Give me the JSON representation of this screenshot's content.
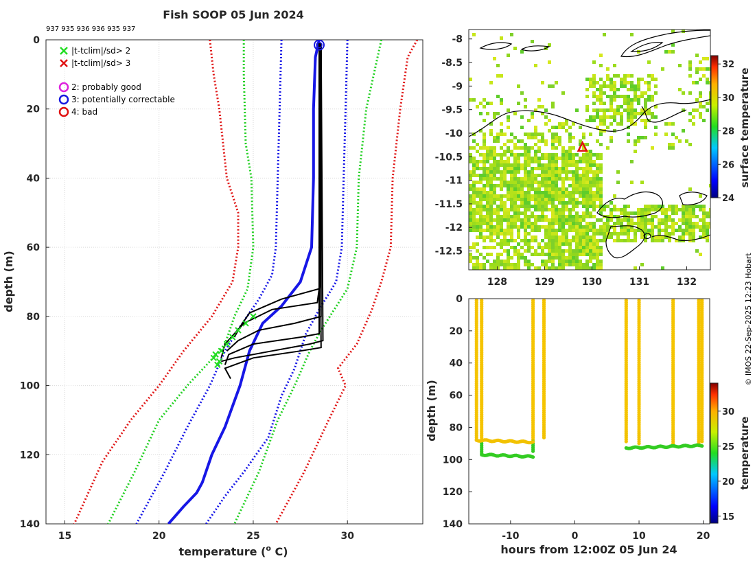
{
  "chart_data": [
    {
      "type": "line",
      "panel": "profile",
      "title": "Fish SOOP 05 Jun 2024",
      "header_ids": "937 935 936 936 935 937",
      "xlabel": "temperature (° C)",
      "xlabel_prefix": "temperature (",
      "xlabel_sup": "o",
      "xlabel_suffix": " C)",
      "ylabel": "depth (m)",
      "xlim": [
        14,
        34
      ],
      "ylim": [
        140,
        0
      ],
      "xticks": [
        15,
        20,
        25,
        30
      ],
      "yticks": [
        0,
        20,
        40,
        60,
        80,
        100,
        120,
        140
      ],
      "legend": [
        {
          "marker": "x",
          "color": "#22dd22",
          "label": "|t-tclim|/sd> 2"
        },
        {
          "marker": "x",
          "color": "#e01010",
          "label": "|t-tclim|/sd> 3"
        },
        {
          "marker": "o",
          "color": "#dd22dd",
          "label": "2: probably good"
        },
        {
          "marker": "o",
          "color": "#1818e0",
          "label": "3: potentially correctable"
        },
        {
          "marker": "o",
          "color": "#e01010",
          "label": "4: bad"
        }
      ],
      "climatology": [
        {
          "name": "mean",
          "color": "#1717e6",
          "style": "solid",
          "points": [
            [
              28.5,
              0
            ],
            [
              28.3,
              5
            ],
            [
              28.2,
              20
            ],
            [
              28.2,
              40
            ],
            [
              28.1,
              60
            ],
            [
              27.5,
              70
            ],
            [
              26.5,
              77
            ],
            [
              25.5,
              82
            ],
            [
              24.8,
              90
            ],
            [
              24.3,
              100
            ],
            [
              23.5,
              112
            ],
            [
              22.8,
              120
            ],
            [
              22.3,
              128
            ],
            [
              22.0,
              131
            ],
            [
              21.3,
              135
            ],
            [
              20.5,
              140
            ]
          ]
        },
        {
          "name": "mean-1sd",
          "color": "#1717e6",
          "style": "dotted",
          "points": [
            [
              26.5,
              0
            ],
            [
              26.4,
              20
            ],
            [
              26.3,
              40
            ],
            [
              26.2,
              60
            ],
            [
              26.0,
              68
            ],
            [
              25.3,
              75
            ],
            [
              24.3,
              83
            ],
            [
              23.5,
              90
            ],
            [
              22.7,
              100
            ],
            [
              21.5,
              112
            ],
            [
              20.3,
              125
            ],
            [
              19.3,
              135
            ],
            [
              18.8,
              140
            ]
          ]
        },
        {
          "name": "mean+1sd",
          "color": "#1717e6",
          "style": "dotted",
          "points": [
            [
              30.0,
              0
            ],
            [
              29.9,
              20
            ],
            [
              29.8,
              40
            ],
            [
              29.7,
              60
            ],
            [
              29.4,
              70
            ],
            [
              28.5,
              78
            ],
            [
              27.8,
              85
            ],
            [
              27.2,
              95
            ],
            [
              26.5,
              103
            ],
            [
              25.8,
              115
            ],
            [
              24.5,
              125
            ],
            [
              23.5,
              132
            ],
            [
              22.5,
              140
            ]
          ]
        },
        {
          "name": "mean-2sd",
          "color": "#22d022",
          "style": "dotted",
          "points": [
            [
              24.5,
              0
            ],
            [
              24.5,
              10
            ],
            [
              24.6,
              30
            ],
            [
              24.9,
              40
            ],
            [
              25.0,
              60
            ],
            [
              24.7,
              72
            ],
            [
              24.0,
              80
            ],
            [
              23.5,
              88
            ],
            [
              22.7,
              93
            ],
            [
              21.5,
              100
            ],
            [
              20.0,
              110
            ],
            [
              18.7,
              125
            ],
            [
              17.3,
              140
            ]
          ]
        },
        {
          "name": "mean+2sd",
          "color": "#22d022",
          "style": "dotted",
          "points": [
            [
              31.8,
              0
            ],
            [
              31.4,
              10
            ],
            [
              31.0,
              20
            ],
            [
              30.6,
              40
            ],
            [
              30.5,
              60
            ],
            [
              30.0,
              72
            ],
            [
              29.3,
              78
            ],
            [
              28.6,
              84
            ],
            [
              28.0,
              90
            ],
            [
              27.2,
              100
            ],
            [
              26.3,
              110
            ],
            [
              25.3,
              125
            ],
            [
              24.0,
              140
            ]
          ]
        },
        {
          "name": "mean-3sd",
          "color": "#e01818",
          "style": "dotted",
          "points": [
            [
              22.7,
              0
            ],
            [
              22.9,
              10
            ],
            [
              23.2,
              20
            ],
            [
              23.6,
              40
            ],
            [
              24.2,
              50
            ],
            [
              24.2,
              60
            ],
            [
              23.9,
              70
            ],
            [
              22.8,
              80
            ],
            [
              21.3,
              90
            ],
            [
              20.0,
              100
            ],
            [
              18.5,
              110
            ],
            [
              17.0,
              122
            ],
            [
              15.5,
              140
            ]
          ]
        },
        {
          "name": "mean+3sd",
          "color": "#e01818",
          "style": "dotted",
          "points": [
            [
              33.7,
              0
            ],
            [
              33.2,
              5
            ],
            [
              32.8,
              20
            ],
            [
              32.4,
              40
            ],
            [
              32.3,
              60
            ],
            [
              31.8,
              70
            ],
            [
              31.3,
              78
            ],
            [
              30.5,
              88
            ],
            [
              29.5,
              95
            ],
            [
              29.9,
              100
            ],
            [
              29.0,
              110
            ],
            [
              27.7,
              125
            ],
            [
              26.2,
              140
            ]
          ]
        }
      ],
      "profiles": [
        [
          [
            28.55,
            1
          ],
          [
            28.6,
            60
          ],
          [
            28.5,
            72
          ],
          [
            26.5,
            75
          ],
          [
            24.8,
            79
          ],
          [
            24.3,
            83
          ],
          [
            24.0,
            86
          ]
        ],
        [
          [
            28.5,
            1
          ],
          [
            28.55,
            70
          ],
          [
            28.4,
            76
          ],
          [
            26.0,
            78
          ],
          [
            24.5,
            82
          ],
          [
            23.5,
            88
          ],
          [
            23.3,
            92
          ]
        ],
        [
          [
            28.6,
            1
          ],
          [
            28.6,
            80
          ],
          [
            27.2,
            82
          ],
          [
            25.3,
            84
          ],
          [
            24.2,
            87
          ],
          [
            23.6,
            90
          ]
        ],
        [
          [
            28.5,
            1
          ],
          [
            28.5,
            85
          ],
          [
            27.5,
            86
          ],
          [
            25.0,
            88
          ],
          [
            23.7,
            91
          ],
          [
            23.5,
            94
          ]
        ],
        [
          [
            28.6,
            1
          ],
          [
            28.7,
            87
          ],
          [
            28.0,
            88
          ],
          [
            26.0,
            90
          ],
          [
            24.0,
            92
          ],
          [
            23.3,
            93
          ]
        ],
        [
          [
            28.5,
            1
          ],
          [
            28.6,
            89
          ],
          [
            27.5,
            90
          ],
          [
            25.0,
            92
          ],
          [
            23.5,
            95
          ],
          [
            23.8,
            98
          ]
        ]
      ],
      "flags": [
        {
          "x": 28.5,
          "y": 1.5,
          "color": "#1818e0"
        }
      ],
      "outlier_markers": [
        [
          23.0,
          91
        ],
        [
          23.2,
          93
        ],
        [
          22.9,
          92
        ],
        [
          23.3,
          90
        ],
        [
          23.6,
          88
        ],
        [
          23.9,
          86
        ],
        [
          24.2,
          84
        ],
        [
          24.6,
          82
        ],
        [
          25.0,
          80
        ],
        [
          23.1,
          94
        ]
      ]
    },
    {
      "type": "heatmap",
      "panel": "map",
      "xticks": [
        128,
        129,
        130,
        131,
        132
      ],
      "yticks": [
        -8,
        -8.5,
        -9,
        -9.5,
        -10,
        -10.5,
        -11,
        -11.5,
        -12,
        -12.5
      ],
      "xlim": [
        127.4,
        132.5
      ],
      "ylim": [
        -12.9,
        -7.8
      ],
      "ship_position": {
        "lon": 129.8,
        "lat": -10.3,
        "marker": "triangle",
        "color": "#e01010"
      },
      "colorbar": {
        "label": "surface temperature",
        "ticks": [
          24,
          26,
          28,
          30,
          32
        ],
        "range": [
          24,
          32.5
        ]
      }
    },
    {
      "type": "scatter",
      "panel": "timeseries",
      "xlabel": "hours from 12:00Z 05 Jun 24",
      "ylabel": "depth (m)",
      "xlim": [
        -16.5,
        21
      ],
      "ylim": [
        140,
        0
      ],
      "xticks": [
        -10,
        0,
        10,
        20
      ],
      "yticks": [
        0,
        20,
        40,
        60,
        80,
        100,
        120,
        140
      ],
      "casts": [
        -15.3,
        -14.5,
        -6.5,
        -4.8,
        8.0,
        10.0,
        15.3,
        19.3,
        19.8
      ],
      "segments": [
        {
          "x0": -15.3,
          "x1": -6.5,
          "depth_mid": 88,
          "color": "#f2c200"
        },
        {
          "x0": -14.5,
          "x1": -6.5,
          "depth_mid": 97,
          "color": "#33cc22"
        },
        {
          "x0": 8.0,
          "x1": 19.8,
          "depth_mid": 92,
          "color": "#33cc22"
        }
      ],
      "colorbar": {
        "label": "temperature",
        "ticks": [
          15,
          20,
          25,
          30
        ],
        "range": [
          14,
          34
        ]
      }
    }
  ],
  "credit": "© IMOS 22-Sep-2025 12:23 Hobart"
}
